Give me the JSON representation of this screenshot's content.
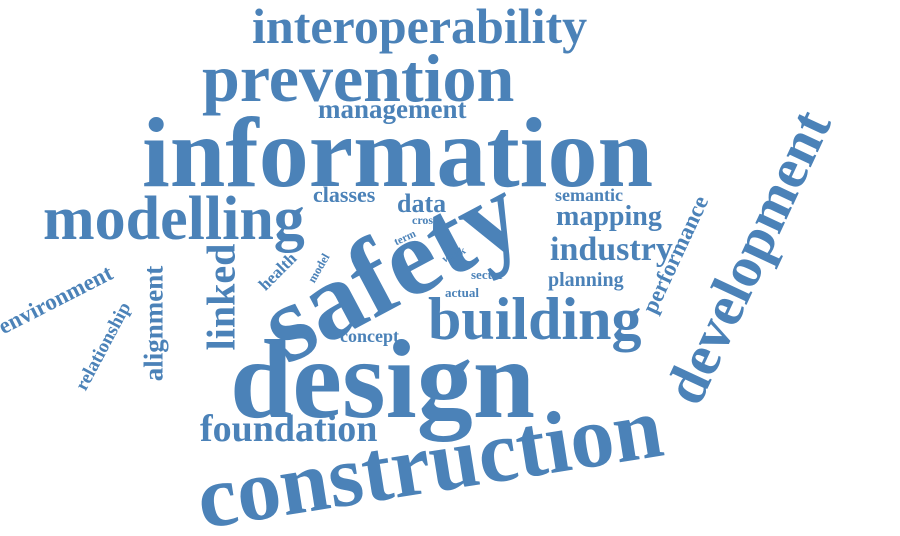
{
  "color": "#4b82b8",
  "words": {
    "interoperability": "interoperability",
    "prevention": "prevention",
    "management": "management",
    "information": "information",
    "modelling": "modelling",
    "classes": "classes",
    "data": "data",
    "cross": "cross",
    "term": "term",
    "semantic": "semantic",
    "mapping": "mapping",
    "industry": "industry",
    "planning": "planning",
    "performance": "performance",
    "development": "development",
    "safety": "safety",
    "health": "health",
    "model": "model",
    "work": "work",
    "sector": "sector",
    "actual": "actual",
    "building": "building",
    "concept": "concept",
    "design": "design",
    "linked": "linked",
    "environment": "environment",
    "relationship": "relationship",
    "alignment": "alignment",
    "foundation": "foundation",
    "construction": "construction"
  }
}
